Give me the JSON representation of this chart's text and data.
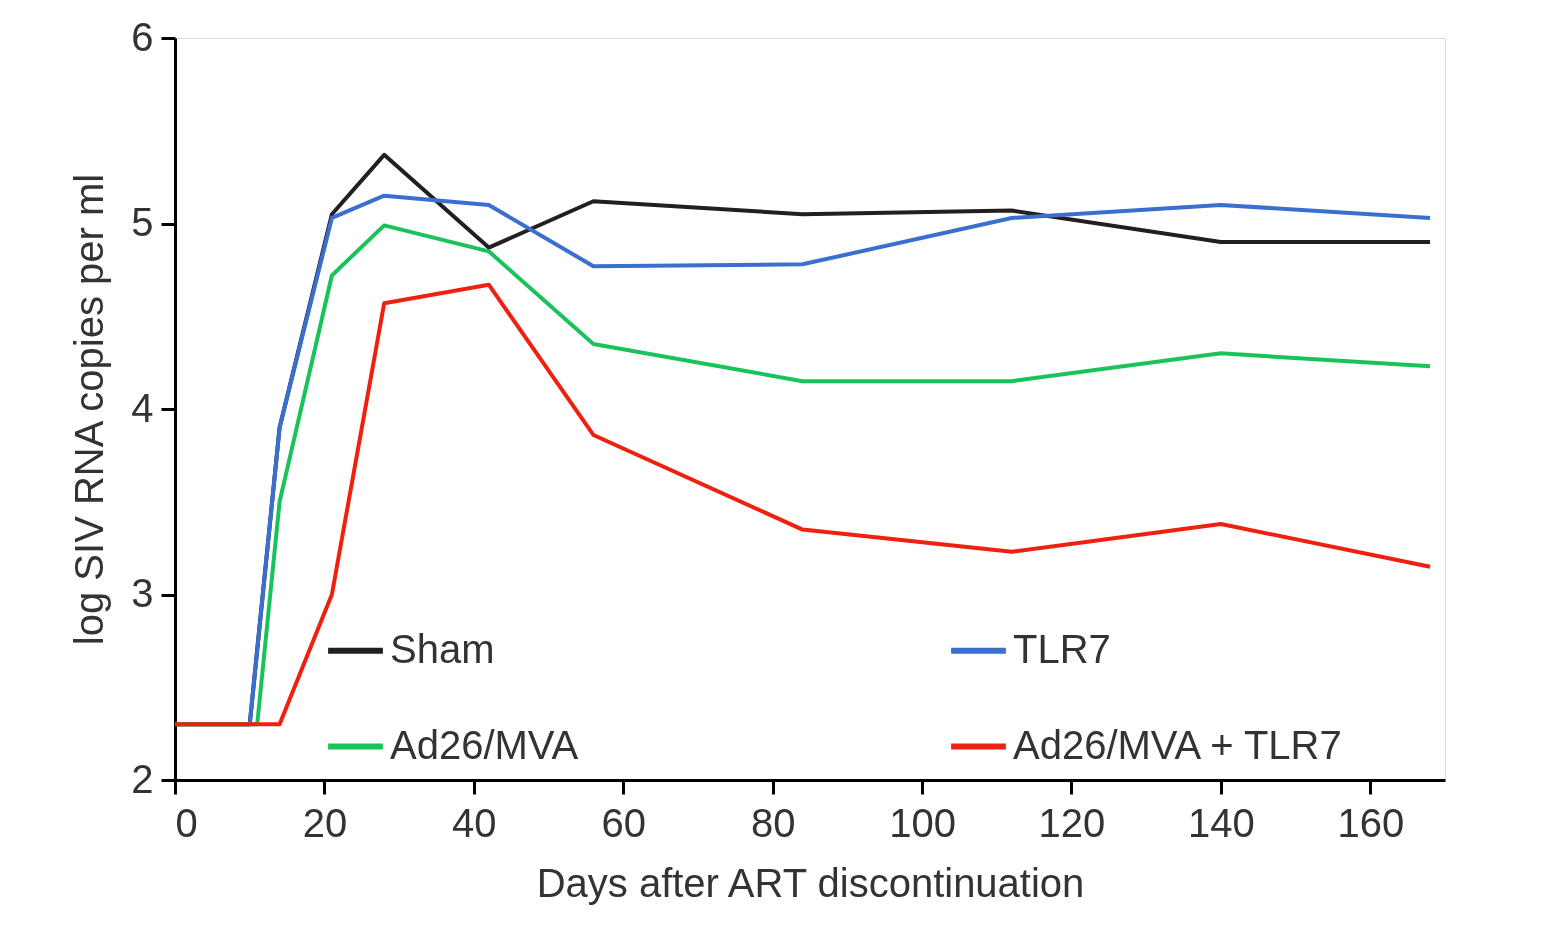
{
  "chart_data": {
    "type": "line",
    "xlabel": "Days after ART discontinuation",
    "ylabel": "log SIV RNA copies per ml",
    "xlim": [
      0,
      170
    ],
    "xticks": [
      0,
      20,
      40,
      60,
      80,
      100,
      120,
      140,
      160
    ],
    "ylim": [
      2,
      6
    ],
    "yticks": [
      2,
      3,
      4,
      5,
      6
    ],
    "grid": false,
    "legend": "bottom",
    "marker": "none",
    "line_style": "solid",
    "series": [
      {
        "name": "Sham",
        "color": "#231f20",
        "x": [
          0,
          10,
          14,
          21,
          28,
          42,
          56,
          84,
          112,
          140,
          168
        ],
        "values": [
          2.3,
          2.3,
          3.9,
          5.05,
          5.37,
          4.87,
          5.12,
          5.05,
          5.07,
          4.9,
          4.9
        ]
      },
      {
        "name": "TLR7",
        "color": "#3a6fd0",
        "x": [
          0,
          10,
          14,
          21,
          28,
          42,
          56,
          84,
          112,
          140,
          168
        ],
        "values": [
          2.3,
          2.3,
          3.9,
          5.03,
          5.15,
          5.1,
          4.77,
          4.78,
          5.03,
          5.1,
          5.03
        ]
      },
      {
        "name": "Ad26/MVA",
        "color": "#19c35a",
        "x": [
          0,
          11,
          14,
          21,
          28,
          42,
          56,
          84,
          112,
          140,
          168
        ],
        "values": [
          2.3,
          2.3,
          3.5,
          4.72,
          4.99,
          4.85,
          4.35,
          4.15,
          4.15,
          4.3,
          4.23
        ]
      },
      {
        "name": "Ad26/MVA + TLR7",
        "color": "#f02010",
        "x": [
          0,
          14,
          21,
          28,
          42,
          56,
          84,
          112,
          140,
          168
        ],
        "values": [
          2.3,
          2.3,
          3.0,
          4.57,
          4.67,
          3.86,
          3.35,
          3.23,
          3.38,
          3.15
        ]
      }
    ]
  }
}
